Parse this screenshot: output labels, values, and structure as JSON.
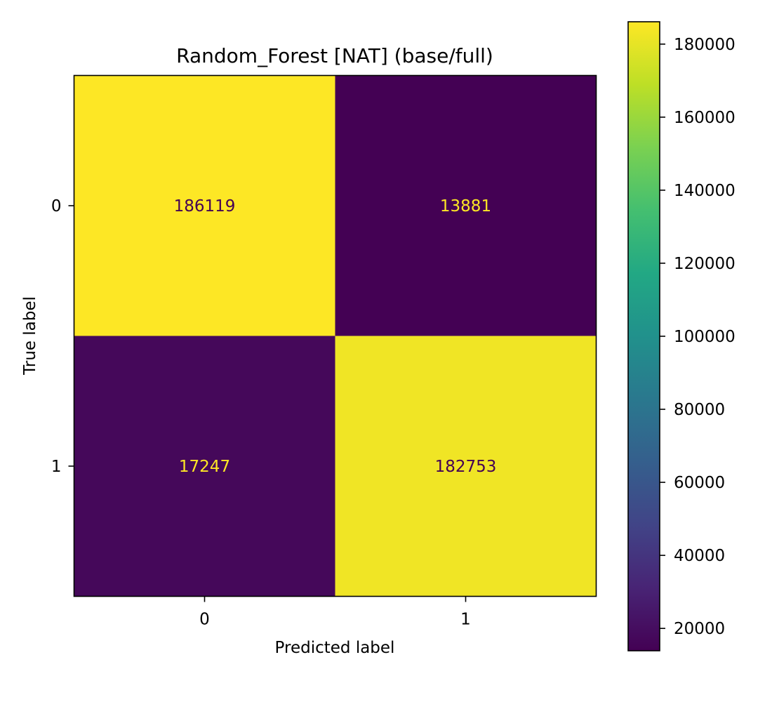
{
  "chart_data": {
    "type": "heatmap",
    "title": "Random_Forest [NAT] (base/full)",
    "xlabel": "Predicted label",
    "ylabel": "True label",
    "x_categories": [
      "0",
      "1"
    ],
    "y_categories": [
      "0",
      "1"
    ],
    "values": [
      [
        186119,
        13881
      ],
      [
        17247,
        182753
      ]
    ],
    "colormap": "viridis",
    "colorbar": {
      "range": [
        13881,
        186119
      ],
      "ticks": [
        20000,
        40000,
        60000,
        80000,
        100000,
        120000,
        140000,
        160000,
        180000
      ],
      "tick_labels": [
        "20000",
        "40000",
        "60000",
        "80000",
        "100000",
        "120000",
        "140000",
        "160000",
        "180000"
      ]
    },
    "text_colors": {
      "on_dark": "#fde725",
      "on_light": "#440154"
    },
    "grid": false
  }
}
